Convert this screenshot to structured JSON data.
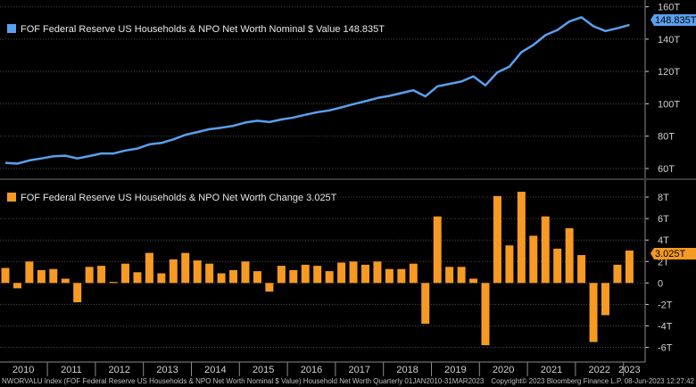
{
  "colors": {
    "background": "#000000",
    "grid": "#4a4a4a",
    "line": "#5aa0ee",
    "bar": "#f59a23",
    "axis_text": "#cfcfcf",
    "divider": "#3a3a3a"
  },
  "footer": {
    "left": "NWORVALU Index (FOF Federal Reserve US Households & NPO Net Worth Nominal $ Value) Household Net Worth  Quarterly 01JAN2010-31MAR2023",
    "right": "Copyright© 2023 Bloomberg Finance L.P.     08-Jun-2023 12:27:42"
  },
  "chart_data": [
    {
      "type": "line",
      "legend": "FOF Federal Reserve US Households & NPO Net Worth Nominal $ Value 148.835T",
      "last_value_label": "148.835T",
      "ylim": [
        55,
        162
      ],
      "yticks": [
        60,
        80,
        100,
        120,
        140,
        160
      ],
      "ytick_labels": [
        "60T",
        "80T",
        "100T",
        "120T",
        "140T",
        "160T"
      ],
      "grid": true,
      "legend_position": "top-left",
      "x": [
        "2010Q1",
        "2010Q2",
        "2010Q3",
        "2010Q4",
        "2011Q1",
        "2011Q2",
        "2011Q3",
        "2011Q4",
        "2012Q1",
        "2012Q2",
        "2012Q3",
        "2012Q4",
        "2013Q1",
        "2013Q2",
        "2013Q3",
        "2013Q4",
        "2014Q1",
        "2014Q2",
        "2014Q3",
        "2014Q4",
        "2015Q1",
        "2015Q2",
        "2015Q3",
        "2015Q4",
        "2016Q1",
        "2016Q2",
        "2016Q3",
        "2016Q4",
        "2017Q1",
        "2017Q2",
        "2017Q3",
        "2017Q4",
        "2018Q1",
        "2018Q2",
        "2018Q3",
        "2018Q4",
        "2019Q1",
        "2019Q2",
        "2019Q3",
        "2019Q4",
        "2020Q1",
        "2020Q2",
        "2020Q3",
        "2020Q4",
        "2021Q1",
        "2021Q2",
        "2021Q3",
        "2021Q4",
        "2022Q1",
        "2022Q2",
        "2022Q3",
        "2022Q4",
        "2023Q1"
      ],
      "values": [
        63.5,
        63.0,
        65.0,
        66.2,
        67.5,
        67.9,
        66.2,
        67.7,
        69.3,
        69.3,
        71.1,
        72.3,
        74.9,
        75.8,
        78.0,
        80.8,
        82.5,
        84.3,
        85.2,
        86.4,
        88.4,
        89.5,
        88.7,
        90.3,
        91.5,
        93.2,
        94.8,
        95.9,
        97.8,
        99.8,
        101.6,
        103.6,
        104.9,
        106.6,
        108.4,
        104.6,
        110.8,
        112.3,
        113.8,
        117.0,
        111.4,
        119.5,
        123.0,
        132.0,
        136.4,
        142.5,
        145.7,
        150.9,
        153.5,
        148.0,
        145.0,
        146.7,
        148.835
      ]
    },
    {
      "type": "bar",
      "legend": "FOF Federal Reserve US Households & NPO Net Worth Change 3.025T",
      "last_value_label": "3.025T",
      "ylim": [
        -7.2,
        9.5
      ],
      "yticks": [
        -6,
        -4,
        -2,
        0,
        2,
        4,
        6,
        8
      ],
      "ytick_labels": [
        "-6T",
        "-4T",
        "-2T",
        "0",
        "2T",
        "4T",
        "6T",
        "8T"
      ],
      "grid": true,
      "legend_position": "top-left",
      "x": [
        "2010Q1",
        "2010Q2",
        "2010Q3",
        "2010Q4",
        "2011Q1",
        "2011Q2",
        "2011Q3",
        "2011Q4",
        "2012Q1",
        "2012Q2",
        "2012Q3",
        "2012Q4",
        "2013Q1",
        "2013Q2",
        "2013Q3",
        "2013Q4",
        "2014Q1",
        "2014Q2",
        "2014Q3",
        "2014Q4",
        "2015Q1",
        "2015Q2",
        "2015Q3",
        "2015Q4",
        "2016Q1",
        "2016Q2",
        "2016Q3",
        "2016Q4",
        "2017Q1",
        "2017Q2",
        "2017Q3",
        "2017Q4",
        "2018Q1",
        "2018Q2",
        "2018Q3",
        "2018Q4",
        "2019Q1",
        "2019Q2",
        "2019Q3",
        "2019Q4",
        "2020Q1",
        "2020Q2",
        "2020Q3",
        "2020Q4",
        "2021Q1",
        "2021Q2",
        "2021Q3",
        "2021Q4",
        "2022Q1",
        "2022Q2",
        "2022Q3",
        "2022Q4",
        "2023Q1"
      ],
      "values": [
        1.4,
        -0.5,
        2.0,
        1.2,
        1.3,
        0.4,
        -1.8,
        1.5,
        1.6,
        0.1,
        1.8,
        1.0,
        2.8,
        0.9,
        2.2,
        2.8,
        2.1,
        1.8,
        0.9,
        1.2,
        2.0,
        1.1,
        -0.8,
        1.6,
        1.2,
        1.7,
        1.6,
        1.1,
        1.9,
        2.0,
        1.7,
        2.0,
        1.3,
        1.3,
        1.8,
        -3.8,
        6.2,
        1.5,
        1.5,
        0.4,
        -5.8,
        8.1,
        3.5,
        8.5,
        4.4,
        6.2,
        3.2,
        5.1,
        2.6,
        -5.5,
        -3.0,
        1.7,
        3.025
      ]
    }
  ],
  "x_axis": {
    "year_labels": [
      "2010",
      "2011",
      "2012",
      "2013",
      "2014",
      "2015",
      "2016",
      "2017",
      "2018",
      "2019",
      "2020",
      "2021",
      "2022",
      "2023"
    ]
  }
}
